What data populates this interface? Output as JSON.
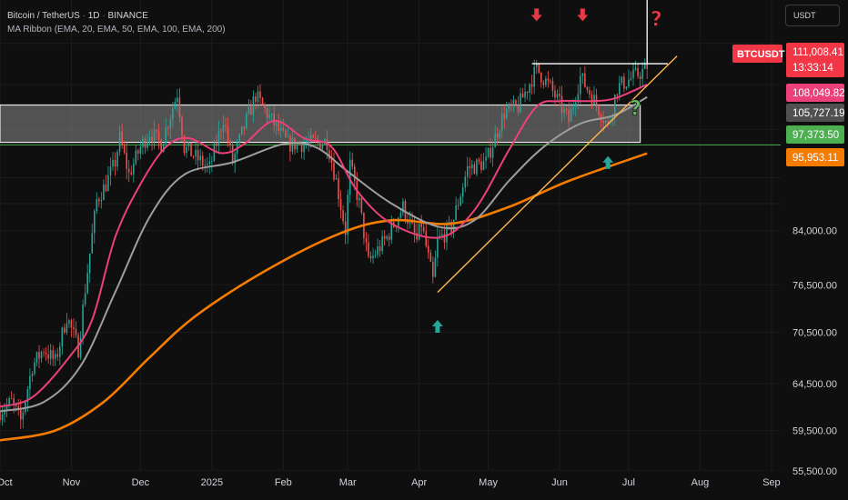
{
  "header": {
    "symbol_line": {
      "pair": "Bitcoin / TetherUS",
      "interval": "1D",
      "exchange": "BINANCE"
    },
    "indicator_line": "MA Ribbon (EMA, 20, EMA, 50, EMA, 100, EMA, 200)",
    "currency_button": "USDT"
  },
  "colors": {
    "background": "#0f0f0f",
    "up_candle": "#26a69a",
    "down_candle": "#ef5350",
    "ema20": "#ec407a",
    "ema50": "#9e9e9e",
    "ema200": "#f57c00",
    "trendline": "#ffb74d",
    "resistance": "#ffffff",
    "support_zone_fill": "#8a8a8a",
    "support_line": "#4caf50",
    "arrow_down": "#e53945",
    "arrow_up": "#26a69a",
    "qmark_red": "#e53945",
    "qmark_green": "#66bb6a"
  },
  "chart_data": {
    "type": "candlestick",
    "symbol": "BTCUSDT",
    "scale": "log",
    "y_range": [
      55500,
      125000
    ],
    "x_range": [
      "2024-10-01",
      "2025-09-05"
    ],
    "x_ticks": [
      {
        "label": "Oct",
        "date": "2024-10-01"
      },
      {
        "label": "Nov",
        "date": "2024-11-01"
      },
      {
        "label": "Dec",
        "date": "2024-12-01"
      },
      {
        "label": "2025",
        "date": "2025-01-01"
      },
      {
        "label": "Feb",
        "date": "2025-02-01"
      },
      {
        "label": "Mar",
        "date": "2025-03-01"
      },
      {
        "label": "Apr",
        "date": "2025-04-01"
      },
      {
        "label": "May",
        "date": "2025-05-01"
      },
      {
        "label": "Jun",
        "date": "2025-06-01"
      },
      {
        "label": "Jul",
        "date": "2025-07-01"
      },
      {
        "label": "Aug",
        "date": "2025-08-01"
      },
      {
        "label": "Sep",
        "date": "2025-09-01"
      }
    ],
    "y_ticks": [
      {
        "label": "84,000.00",
        "value": 84000
      },
      {
        "label": "76,500.00",
        "value": 76500
      },
      {
        "label": "70,500.00",
        "value": 70500
      },
      {
        "label": "64,500.00",
        "value": 64500
      },
      {
        "label": "59,500.00",
        "value": 59500
      },
      {
        "label": "55,500.00",
        "value": 55500
      }
    ],
    "price_tags": [
      {
        "label": "111,008.41",
        "sub": "13:33:14",
        "value": 111008.41,
        "color": "#f23645"
      },
      {
        "label": "108,049.82",
        "value": 108049.82,
        "color": "#ec407a"
      },
      {
        "label": "105,727.19",
        "value": 105727.19,
        "color": "#505050"
      },
      {
        "label": "97,373.50",
        "value": 97373.5,
        "color": "#4caf50"
      },
      {
        "label": "95,953.11",
        "value": 95953.11,
        "color": "#f57c00"
      }
    ],
    "symbol_tag": {
      "label": "BTCUSDT",
      "value": 111008.41,
      "color": "#f23645"
    },
    "close_path": [
      [
        "2024-10-01",
        61500
      ],
      [
        "2024-10-06",
        62500
      ],
      [
        "2024-10-10",
        60500
      ],
      [
        "2024-10-15",
        66500
      ],
      [
        "2024-10-20",
        68500
      ],
      [
        "2024-10-25",
        67000
      ],
      [
        "2024-10-30",
        72500
      ],
      [
        "2024-11-04",
        68500
      ],
      [
        "2024-11-07",
        76000
      ],
      [
        "2024-11-12",
        88500
      ],
      [
        "2024-11-16",
        91000
      ],
      [
        "2024-11-20",
        94500
      ],
      [
        "2024-11-22",
        98500
      ],
      [
        "2024-11-26",
        92500
      ],
      [
        "2024-12-01",
        97000
      ],
      [
        "2024-12-05",
        99500
      ],
      [
        "2024-12-10",
        97500
      ],
      [
        "2024-12-17",
        106500
      ],
      [
        "2024-12-20",
        97000
      ],
      [
        "2024-12-26",
        95000
      ],
      [
        "2024-12-31",
        93500
      ],
      [
        "2025-01-06",
        102000
      ],
      [
        "2025-01-10",
        94500
      ],
      [
        "2025-01-15",
        100500
      ],
      [
        "2025-01-20",
        106000
      ],
      [
        "2025-01-27",
        101500
      ],
      [
        "2025-02-03",
        97500
      ],
      [
        "2025-02-10",
        97500
      ],
      [
        "2025-02-20",
        98000
      ],
      [
        "2025-02-24",
        91500
      ],
      [
        "2025-02-28",
        84000
      ],
      [
        "2025-03-02",
        94000
      ],
      [
        "2025-03-06",
        88000
      ],
      [
        "2025-03-10",
        79500
      ],
      [
        "2025-03-18",
        83000
      ],
      [
        "2025-03-25",
        87500
      ],
      [
        "2025-03-31",
        82500
      ],
      [
        "2025-04-02",
        85000
      ],
      [
        "2025-04-07",
        77000
      ],
      [
        "2025-04-09",
        82500
      ],
      [
        "2025-04-15",
        84500
      ],
      [
        "2025-04-22",
        93500
      ],
      [
        "2025-04-30",
        94500
      ],
      [
        "2025-05-08",
        103000
      ],
      [
        "2025-05-14",
        104000
      ],
      [
        "2025-05-22",
        111000
      ],
      [
        "2025-05-28",
        107500
      ],
      [
        "2025-06-05",
        101500
      ],
      [
        "2025-06-10",
        109500
      ],
      [
        "2025-06-17",
        104500
      ],
      [
        "2025-06-22",
        100500
      ],
      [
        "2025-06-26",
        107500
      ],
      [
        "2025-07-03",
        109500
      ],
      [
        "2025-07-09",
        111008
      ]
    ],
    "ema20": [
      [
        "2024-10-01",
        62000
      ],
      [
        "2024-10-15",
        63000
      ],
      [
        "2024-10-31",
        67500
      ],
      [
        "2024-11-10",
        72000
      ],
      [
        "2024-11-20",
        83000
      ],
      [
        "2024-12-01",
        91000
      ],
      [
        "2024-12-12",
        97000
      ],
      [
        "2024-12-22",
        98500
      ],
      [
        "2025-01-05",
        96000
      ],
      [
        "2025-01-15",
        97500
      ],
      [
        "2025-01-28",
        101500
      ],
      [
        "2025-02-10",
        98500
      ],
      [
        "2025-02-22",
        97000
      ],
      [
        "2025-03-05",
        90000
      ],
      [
        "2025-03-20",
        85000
      ],
      [
        "2025-04-10",
        83000
      ],
      [
        "2025-04-25",
        87000
      ],
      [
        "2025-05-10",
        96500
      ],
      [
        "2025-05-22",
        104000
      ],
      [
        "2025-06-01",
        105000
      ],
      [
        "2025-06-15",
        105000
      ],
      [
        "2025-06-25",
        105500
      ],
      [
        "2025-07-09",
        108049
      ]
    ],
    "ema50": [
      [
        "2024-10-01",
        61500
      ],
      [
        "2024-10-20",
        62500
      ],
      [
        "2024-11-05",
        66500
      ],
      [
        "2024-11-20",
        75500
      ],
      [
        "2024-12-05",
        86000
      ],
      [
        "2024-12-20",
        92500
      ],
      [
        "2025-01-10",
        94500
      ],
      [
        "2025-02-01",
        97500
      ],
      [
        "2025-02-15",
        97000
      ],
      [
        "2025-03-01",
        93000
      ],
      [
        "2025-03-20",
        88000
      ],
      [
        "2025-04-10",
        84500
      ],
      [
        "2025-04-25",
        85500
      ],
      [
        "2025-05-10",
        91500
      ],
      [
        "2025-05-25",
        97000
      ],
      [
        "2025-06-10",
        101000
      ],
      [
        "2025-06-25",
        102500
      ],
      [
        "2025-07-09",
        105727
      ]
    ],
    "ema200": [
      [
        "2024-10-01",
        58500
      ],
      [
        "2024-10-25",
        59500
      ],
      [
        "2024-11-15",
        62500
      ],
      [
        "2024-12-05",
        67500
      ],
      [
        "2024-12-25",
        72500
      ],
      [
        "2025-01-25",
        78500
      ],
      [
        "2025-02-25",
        83500
      ],
      [
        "2025-03-20",
        85500
      ],
      [
        "2025-04-15",
        85000
      ],
      [
        "2025-05-10",
        87500
      ],
      [
        "2025-06-05",
        91500
      ],
      [
        "2025-07-09",
        95953
      ]
    ],
    "annotations": {
      "resistance_line": {
        "from": "2025-05-20",
        "to": "2025-07-18",
        "value": 112000
      },
      "vertical_marker": {
        "date": "2025-07-09",
        "from": 112000,
        "to": 125000
      },
      "support_zone": {
        "from": "2024-10-01",
        "to": "2025-07-06",
        "low": 97800,
        "high": 104300
      },
      "support_line": {
        "from": "2024-10-01",
        "to": "2025-09-05",
        "value": 97373.5
      },
      "trendline": [
        [
          "2025-04-09",
          75500
        ],
        [
          "2025-07-22",
          113500
        ]
      ],
      "arrows_down": [
        {
          "date": "2025-05-22",
          "value": 120500
        },
        {
          "date": "2025-06-11",
          "value": 120500
        }
      ],
      "arrows_up": [
        {
          "date": "2025-04-09",
          "value": 72000
        },
        {
          "date": "2025-06-22",
          "value": 95500
        }
      ],
      "question_marks": [
        {
          "date": "2025-07-13",
          "value": 119500,
          "color": "red"
        },
        {
          "date": "2025-07-04",
          "value": 102500,
          "color": "green"
        }
      ]
    }
  }
}
